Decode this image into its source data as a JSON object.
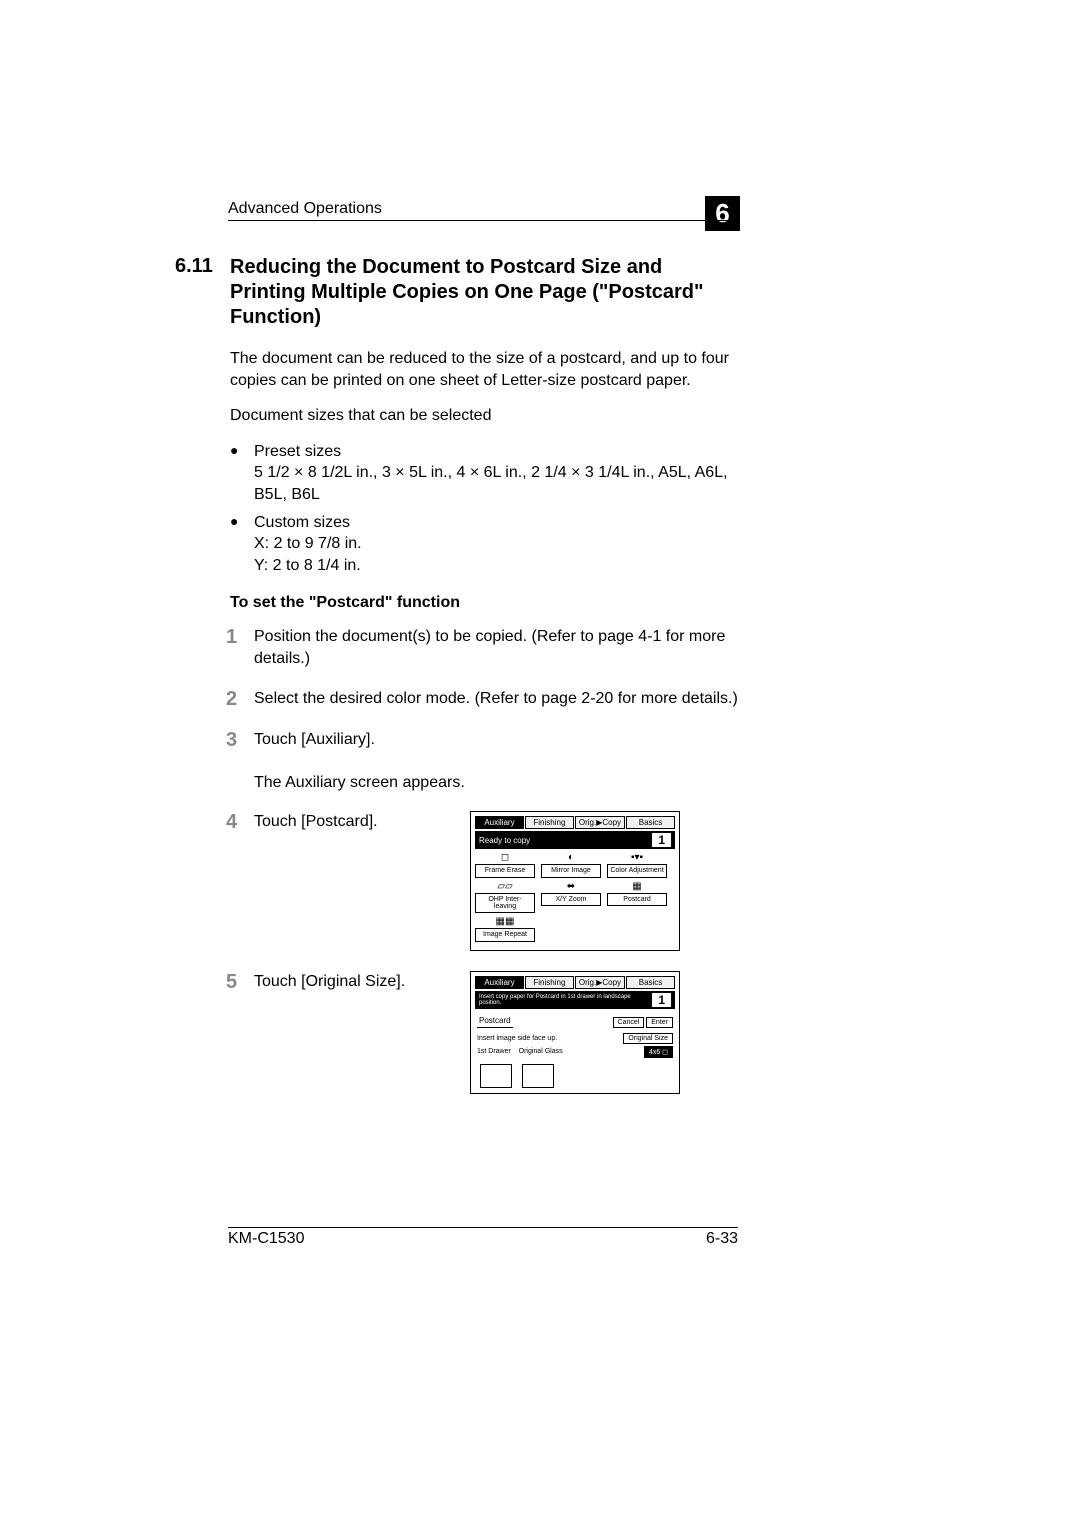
{
  "header": {
    "section_name": "Advanced Operations",
    "chapter_number": "6"
  },
  "section": {
    "number": "6.11",
    "title": "Reducing the Document to Postcard Size and Printing Multiple Copies on One Page (\"Postcard\" Function)"
  },
  "intro": {
    "p1": "The document can be reduced to the size of a postcard, and up to four copies can be printed on one sheet of Letter-size postcard paper.",
    "p2": "Document sizes that can be selected"
  },
  "bullets": {
    "preset_title": "Preset sizes",
    "preset_line": "5 1/2 × 8 1/2L in., 3 × 5L in., 4 × 6L in., 2 1/4 × 3 1/4L in., A5L, A6L, B5L, B6L",
    "custom_title": "Custom sizes",
    "custom_x": "X: 2 to 9 7/8 in.",
    "custom_y": "Y: 2 to 8 1/4 in."
  },
  "subsection_title": "To set the \"Postcard\" function",
  "steps": {
    "s1_num": "1",
    "s1_text": "Position the document(s) to be copied. (Refer to page 4-1 for more details.)",
    "s2_num": "2",
    "s2_text": "Select the desired color mode. (Refer to page 2-20 for more details.)",
    "s3_num": "3",
    "s3_text": "Touch [Auxiliary].",
    "s3_sub": "The Auxiliary screen appears.",
    "s4_num": "4",
    "s4_text": "Touch [Postcard].",
    "s5_num": "5",
    "s5_text": "Touch [Original Size]."
  },
  "screen1": {
    "tab_auxiliary": "Auxiliary",
    "tab_finishing": "Finishing",
    "tab_origcopy": "Orig.▶Copy",
    "tab_basics": "Basics",
    "status": "Ready to copy",
    "count": "1",
    "btn_frame_erase": "Frame Erase",
    "btn_mirror": "Mirror Image",
    "btn_color_adj": "Color Adjustment",
    "btn_ohp": "OHP Inter-leaving",
    "btn_xyzoom": "X/Y Zoom",
    "btn_postcard": "Postcard",
    "btn_image_repeat": "Image Repeat"
  },
  "screen2": {
    "tab_auxiliary": "Auxiliary",
    "tab_finishing": "Finishing",
    "tab_origcopy": "Orig.▶Copy",
    "tab_basics": "Basics",
    "status": "Insert copy paper for Postcard in 1st drawer in landscape position.",
    "count": "1",
    "title": "Postcard",
    "cancel": "Cancel",
    "enter": "Enter",
    "instruction": "Insert image side face up.",
    "original_size": "Original Size",
    "paper_size": "4x6 ◻",
    "drawer": "1st Drawer",
    "glass": "Original Glass"
  },
  "footer": {
    "model": "KM-C1530",
    "page": "6-33"
  }
}
